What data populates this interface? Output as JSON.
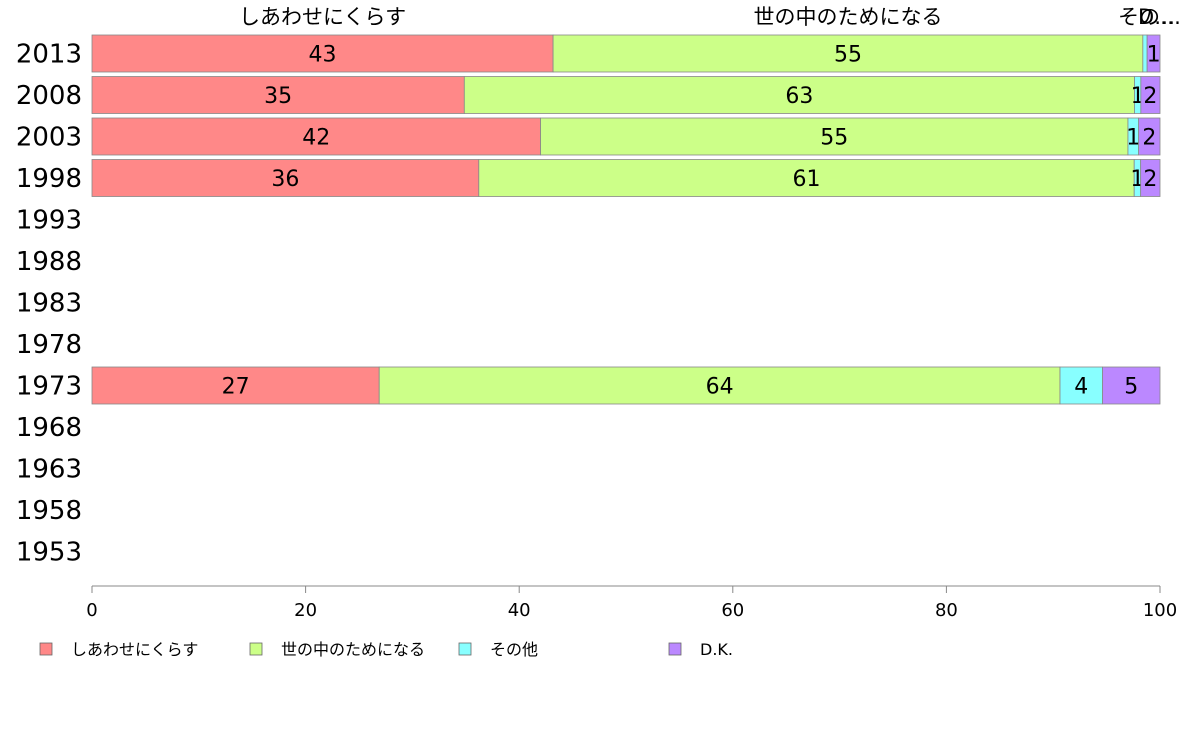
{
  "chart_data": {
    "type": "bar",
    "orientation": "horizontal",
    "stacked": true,
    "categories": [
      "2013",
      "2008",
      "2003",
      "1998",
      "1993",
      "1988",
      "1983",
      "1978",
      "1973",
      "1968",
      "1963",
      "1958",
      "1953"
    ],
    "series": [
      {
        "name": "しあわせにくらす",
        "color": "#ff8888",
        "values": [
          43,
          35,
          42,
          36,
          null,
          null,
          null,
          null,
          27,
          null,
          null,
          null,
          null
        ]
      },
      {
        "name": "世の中のためになる",
        "color": "#ccff88",
        "values": [
          55,
          63,
          55,
          61,
          null,
          null,
          null,
          null,
          64,
          null,
          null,
          null,
          null
        ]
      },
      {
        "name": "その他",
        "color": "#88ffff",
        "values": [
          0.4,
          0.6,
          1,
          0.6,
          null,
          null,
          null,
          null,
          4,
          null,
          null,
          null,
          null
        ]
      },
      {
        "name": "D.K.",
        "color": "#bb88ff",
        "values": [
          1.2,
          1.8,
          2,
          1.8,
          null,
          null,
          null,
          null,
          5.4,
          null,
          null,
          null,
          null
        ]
      }
    ],
    "data_labels": [
      [
        "43",
        "55",
        "",
        "1"
      ],
      [
        "35",
        "63",
        "1",
        "2"
      ],
      [
        "42",
        "55",
        "1",
        "2"
      ],
      [
        "36",
        "61",
        "1",
        "2"
      ],
      null,
      null,
      null,
      null,
      [
        "27",
        "64",
        "4",
        "5"
      ],
      null,
      null,
      null,
      null
    ],
    "top_labels": [
      "しあわせにくらす",
      "世の中のためになる",
      "その…",
      "D…"
    ],
    "xlim": [
      0,
      100
    ],
    "xticks": [
      0,
      20,
      40,
      60,
      80,
      100
    ],
    "legend_position": "bottom",
    "grid": false
  }
}
